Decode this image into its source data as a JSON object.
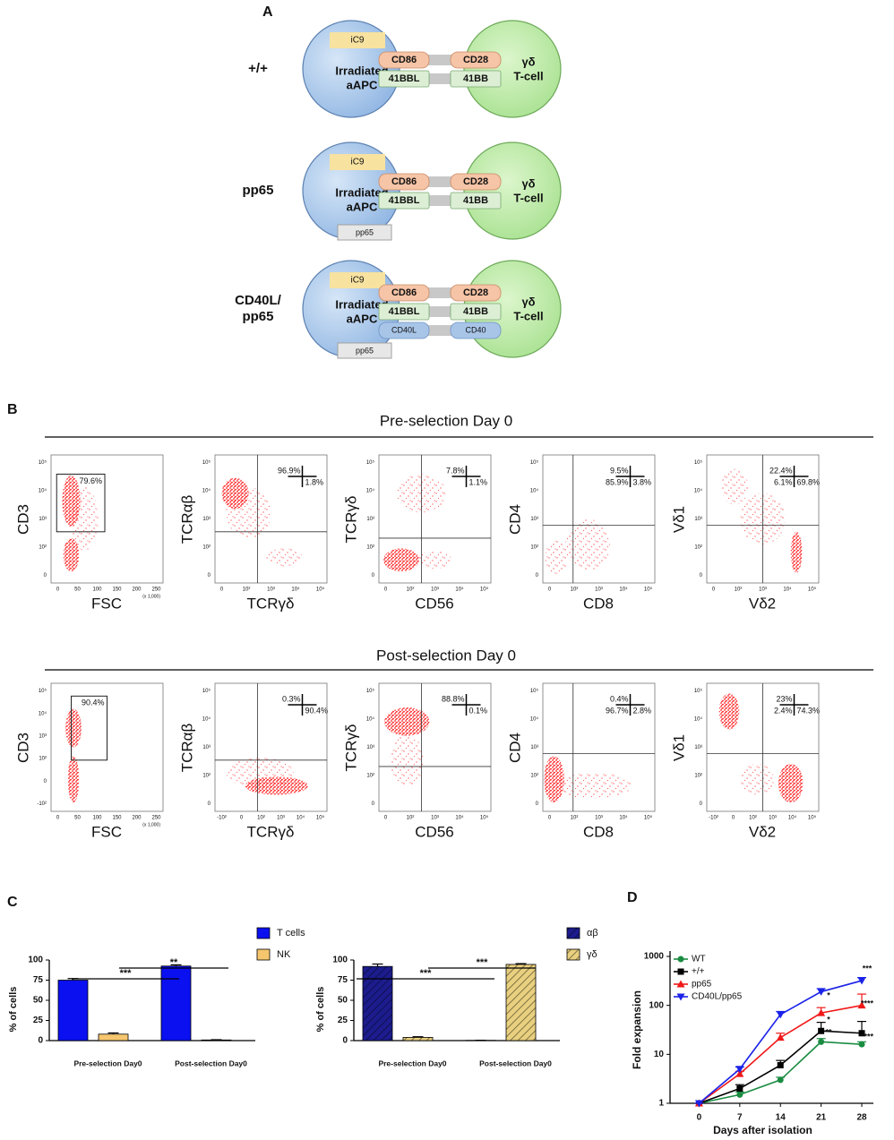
{
  "panel_labels": [
    "A",
    "B",
    "C",
    "D"
  ],
  "diagram": {
    "rows": [
      {
        "label": [
          "+/+"
        ],
        "ic9": "iC9",
        "apc": [
          "Irradiated",
          "aAPC"
        ],
        "pairs": [
          [
            "CD86",
            "CD28"
          ],
          [
            "41BBL",
            "41BB"
          ]
        ],
        "tcell": [
          "γδ",
          "T-cell"
        ]
      },
      {
        "label": [
          "pp65"
        ],
        "ic9": "iC9",
        "apc": [
          "Irradiated",
          "aAPC"
        ],
        "pairs": [
          [
            "CD86",
            "CD28"
          ],
          [
            "41BBL",
            "41BB"
          ]
        ],
        "tcell": [
          "γδ",
          "T-cell"
        ],
        "antigen": "pp65"
      },
      {
        "label": [
          "CD40L/",
          "pp65"
        ],
        "ic9": "iC9",
        "apc": [
          "Irradiated",
          "aAPC"
        ],
        "pairs": [
          [
            "CD86",
            "CD28"
          ],
          [
            "41BBL",
            "41BB"
          ],
          [
            "CD40L",
            "CD40"
          ]
        ],
        "tcell": [
          "γδ",
          "T-cell"
        ],
        "antigen": "pp65"
      }
    ]
  },
  "flow": {
    "sections": [
      {
        "title": "Pre-selection Day 0",
        "plots": [
          {
            "x_label": "FSC",
            "y_label": "CD3",
            "x_ticks": [
              "0",
              "50",
              "100",
              "150",
              "200",
              "250"
            ],
            "y_ticks": [
              "0",
              "10²",
              "10³",
              "10⁴",
              "10⁵"
            ],
            "x_unit": "(x 1,000)",
            "gate": "79.6%"
          },
          {
            "x_label": "TCRγδ",
            "y_label": "TCRαβ",
            "x_ticks": [
              "0",
              "10²",
              "10³",
              "10⁴",
              "10⁵"
            ],
            "y_ticks": [
              "0",
              "10²",
              "10³",
              "10⁴",
              "10⁵"
            ],
            "quadrants": [
              "96.9%",
              "1.8%"
            ]
          },
          {
            "x_label": "CD56",
            "y_label": "TCRγδ",
            "x_ticks": [
              "0",
              "10²",
              "10³",
              "10⁴",
              "10⁵"
            ],
            "y_ticks": [
              "0",
              "10²",
              "10³",
              "10⁴",
              "10⁵"
            ],
            "quadrants": [
              "7.8%",
              "1.1%"
            ]
          },
          {
            "x_label": "CD8",
            "y_label": "CD4",
            "x_ticks": [
              "0",
              "10²",
              "10³",
              "10⁴",
              "10⁵"
            ],
            "y_ticks": [
              "0",
              "10²",
              "10³",
              "10⁴",
              "10⁵"
            ],
            "quadrants": [
              "9.5%",
              "85.9%",
              "3.8%"
            ]
          },
          {
            "x_label": "Vδ2",
            "y_label": "Vδ1",
            "x_ticks": [
              "0",
              "10²",
              "10³",
              "10⁴",
              "10⁵"
            ],
            "y_ticks": [
              "0",
              "10²",
              "10³",
              "10⁴",
              "10⁵"
            ],
            "quadrants": [
              "22.4%",
              "6.1%",
              "69.8%"
            ]
          }
        ]
      },
      {
        "title": "Post-selection Day 0",
        "plots": [
          {
            "x_label": "FSC",
            "y_label": "CD3",
            "x_ticks": [
              "0",
              "50",
              "100",
              "150",
              "200",
              "250"
            ],
            "y_ticks": [
              "-10²",
              "0",
              "10²",
              "10³",
              "10⁴",
              "10⁵"
            ],
            "x_unit": "(x 1,000)",
            "gate": "90.4%"
          },
          {
            "x_label": "TCRγδ",
            "y_label": "TCRαβ",
            "x_ticks": [
              "-10²",
              "0",
              "10²",
              "10³",
              "10⁴",
              "10⁵"
            ],
            "y_ticks": [
              "0",
              "10²",
              "10³",
              "10⁴",
              "10⁵"
            ],
            "quadrants": [
              "0.3%",
              "90.4%"
            ]
          },
          {
            "x_label": "CD56",
            "y_label": "TCRγδ",
            "x_ticks": [
              "0",
              "10²",
              "10³",
              "10⁴",
              "10⁵"
            ],
            "y_ticks": [
              "0",
              "10²",
              "10³",
              "10⁴",
              "10⁵"
            ],
            "quadrants": [
              "88.8%",
              "0.1%"
            ]
          },
          {
            "x_label": "CD8",
            "y_label": "CD4",
            "x_ticks": [
              "0",
              "10²",
              "10³",
              "10⁴",
              "10⁵"
            ],
            "y_ticks": [
              "0",
              "10²",
              "10³",
              "10⁴",
              "10⁵"
            ],
            "quadrants": [
              "0.4%",
              "96.7%",
              "2.8%"
            ]
          },
          {
            "x_label": "Vδ2",
            "y_label": "Vδ1",
            "x_ticks": [
              "-10²",
              "0",
              "10²",
              "10³",
              "10⁴",
              "10⁵"
            ],
            "y_ticks": [
              "0",
              "10²",
              "10³",
              "10⁴",
              "10⁵"
            ],
            "quadrants": [
              "23%",
              "2.4%",
              "74.3%"
            ]
          }
        ]
      }
    ]
  },
  "chart_data": [
    {
      "type": "bar",
      "ylabel": "% of cells",
      "categories": [
        "Pre-selection Day0",
        "Post-selection Day0"
      ],
      "series": [
        {
          "name": "T cells",
          "color": "#0a10f0",
          "values": [
            75,
            92.5
          ],
          "errors": [
            2,
            1.5
          ]
        },
        {
          "name": "NK",
          "color": "#f6c66e",
          "values": [
            8,
            0.8
          ],
          "errors": [
            1.5,
            0.3
          ]
        }
      ],
      "ylim": [
        0,
        100
      ],
      "yticks": [
        0,
        25,
        50,
        75,
        100
      ],
      "hatch": false,
      "annotations": [
        "**",
        "***"
      ]
    },
    {
      "type": "bar",
      "ylabel": "% of cells",
      "categories": [
        "Pre-selection Day0",
        "Post-selection Day0"
      ],
      "series": [
        {
          "name": "αβ",
          "color": "#1c1c8e",
          "values": [
            92,
            0.3
          ],
          "errors": [
            3,
            0.1
          ]
        },
        {
          "name": "γδ",
          "color": "#e9d07f",
          "values": [
            4,
            94.5
          ],
          "errors": [
            0.8,
            1
          ]
        }
      ],
      "ylim": [
        0,
        100
      ],
      "yticks": [
        0,
        25,
        50,
        75,
        100
      ],
      "hatch": true,
      "annotations": [
        "***",
        "***"
      ]
    },
    {
      "type": "line",
      "xlabel": "Days after isolation",
      "ylabel": "Fold expansion",
      "x": [
        0,
        7,
        14,
        21,
        28
      ],
      "series": [
        {
          "name": "WT",
          "color": "#1a8c42",
          "marker": "circle",
          "values": [
            1,
            1.5,
            3,
            18,
            16
          ],
          "errors": [
            0,
            0.2,
            0.4,
            3,
            2
          ]
        },
        {
          "name": "+/+",
          "color": "#000000",
          "marker": "square",
          "values": [
            1,
            2,
            6,
            30,
            27
          ],
          "errors": [
            0,
            0.4,
            1.5,
            15,
            20
          ]
        },
        {
          "name": "pp65",
          "color": "#f01818",
          "marker": "triangle-up",
          "values": [
            1,
            4,
            22,
            70,
            100
          ],
          "errors": [
            0,
            0.5,
            5,
            20,
            70
          ]
        },
        {
          "name": "CD40L/pp65",
          "color": "#1a22e8",
          "marker": "triangle-down",
          "values": [
            1,
            5,
            65,
            190,
            320
          ],
          "errors": [
            0,
            0.5,
            10,
            30,
            50
          ]
        }
      ],
      "xlim": [
        -5,
        30
      ],
      "xticks": [
        0,
        7,
        14,
        21,
        28
      ],
      "ylim": [
        1,
        1000
      ],
      "yticks": [
        1,
        10,
        100,
        1000
      ],
      "log_y": true,
      "legend": "top-left",
      "annotations": [
        "***",
        "*",
        "****",
        "*",
        "**",
        "****"
      ]
    }
  ]
}
